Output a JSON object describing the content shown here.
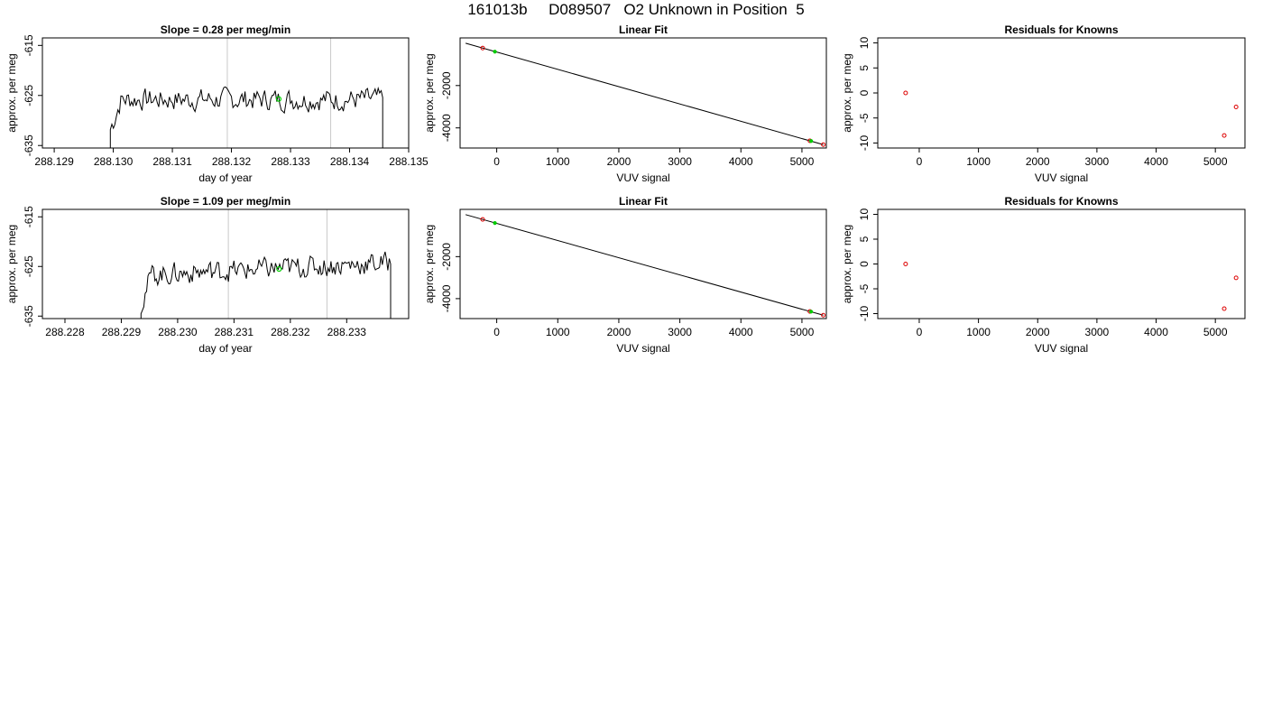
{
  "page": {
    "title": "161013b     D089507   O2 Unknown in Position  5"
  },
  "chart_data": [
    {
      "type": "line",
      "title": "Slope =  0.28  per meg/min",
      "xlabel": "day of year",
      "ylabel": "approx. per meg",
      "xlim": [
        288.1288,
        288.135
      ],
      "ylim": [
        -635.5,
        -613.5
      ],
      "xticks": [
        "288.129",
        "288.130",
        "288.131",
        "288.132",
        "288.133",
        "288.134",
        "288.135"
      ],
      "yticks": [
        "-615",
        "-625",
        "-635"
      ],
      "vlines": [
        288.13193,
        288.13368
      ],
      "green_marker": {
        "x": 288.1328,
        "y": -625.7
      },
      "signal": {
        "x_start": 288.12995,
        "x_end": 288.13456,
        "y_base": -625.8,
        "noise_amp": 3.0,
        "points": 180,
        "start_y": -636,
        "end_y": -636
      }
    },
    {
      "type": "line",
      "title": "Linear Fit",
      "xlabel": "VUV signal",
      "ylabel": "approx. per meg",
      "xlim": [
        -600,
        5400
      ],
      "ylim": [
        -4950,
        250
      ],
      "xticks": [
        "0",
        "1000",
        "2000",
        "3000",
        "4000",
        "5000"
      ],
      "yticks": [
        "-2000",
        "-4000"
      ],
      "fit_line": {
        "x": [
          -510,
          5350
        ],
        "y": [
          0,
          -4790
        ]
      },
      "red_points": [
        {
          "x": -230,
          "y": -230
        },
        {
          "x": 5130,
          "y": -4610
        },
        {
          "x": 5350,
          "y": -4790
        }
      ],
      "green_points": [
        {
          "x": -30,
          "y": -400
        },
        {
          "x": 5150,
          "y": -4620
        }
      ]
    },
    {
      "type": "scatter",
      "title": "Residuals for Knowns",
      "xlabel": "VUV signal",
      "ylabel": "approx. per meg",
      "xlim": [
        -700,
        5500
      ],
      "ylim": [
        -11,
        11
      ],
      "xticks": [
        "0",
        "1000",
        "2000",
        "3000",
        "4000",
        "5000"
      ],
      "yticks": [
        "10",
        "5",
        "0",
        "-5",
        "-10"
      ],
      "points": [
        {
          "x": -230,
          "y": 0
        },
        {
          "x": 5150,
          "y": -8.5
        },
        {
          "x": 5350,
          "y": -2.8
        }
      ]
    },
    {
      "type": "line",
      "title": "Slope =  1.09  per meg/min",
      "xlabel": "day of year",
      "ylabel": "approx. per meg",
      "xlim": [
        288.2276,
        288.2341
      ],
      "ylim": [
        -635.5,
        -613.5
      ],
      "xticks": [
        "288.228",
        "288.229",
        "288.230",
        "288.231",
        "288.232",
        "288.233"
      ],
      "yticks": [
        "-615",
        "-625",
        "-635"
      ],
      "vlines": [
        288.2309,
        288.23265
      ],
      "green_marker": {
        "x": 288.2318,
        "y": -625.5
      },
      "signal": {
        "x_start": 288.22935,
        "x_end": 288.23378,
        "y_base": -625.5,
        "noise_amp": 3.0,
        "points": 180,
        "start_y": -636,
        "end_y": -636,
        "trend": 2.5
      }
    },
    {
      "type": "line",
      "title": "Linear Fit",
      "xlabel": "VUV signal",
      "ylabel": "approx. per meg",
      "xlim": [
        -600,
        5400
      ],
      "ylim": [
        -4950,
        250
      ],
      "xticks": [
        "0",
        "1000",
        "2000",
        "3000",
        "4000",
        "5000"
      ],
      "yticks": [
        "-2000",
        "-4000"
      ],
      "fit_line": {
        "x": [
          -510,
          5350
        ],
        "y": [
          0,
          -4790
        ]
      },
      "red_points": [
        {
          "x": -230,
          "y": -230
        },
        {
          "x": 5130,
          "y": -4610
        },
        {
          "x": 5350,
          "y": -4790
        }
      ],
      "green_points": [
        {
          "x": -30,
          "y": -400
        },
        {
          "x": 5150,
          "y": -4620
        }
      ]
    },
    {
      "type": "scatter",
      "title": "Residuals for Knowns",
      "xlabel": "VUV signal",
      "ylabel": "approx. per meg",
      "xlim": [
        -700,
        5500
      ],
      "ylim": [
        -11,
        11
      ],
      "xticks": [
        "0",
        "1000",
        "2000",
        "3000",
        "4000",
        "5000"
      ],
      "yticks": [
        "10",
        "5",
        "0",
        "-5",
        "-10"
      ],
      "points": [
        {
          "x": -230,
          "y": 0
        },
        {
          "x": 5150,
          "y": -9.0
        },
        {
          "x": 5350,
          "y": -2.8
        }
      ]
    }
  ]
}
